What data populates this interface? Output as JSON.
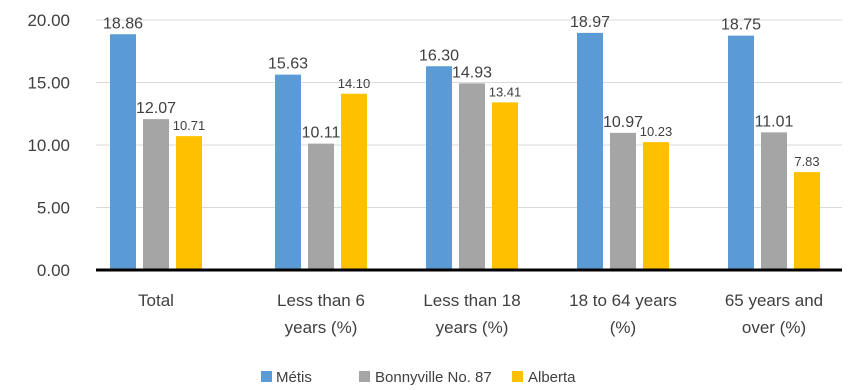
{
  "chart_data": {
    "type": "bar",
    "categories": [
      [
        "Total"
      ],
      [
        "Less than 6",
        "years (%)"
      ],
      [
        "Less than 18",
        "years (%)"
      ],
      [
        "18 to 64 years",
        "(%)"
      ],
      [
        "65 years and",
        "over (%)"
      ]
    ],
    "series": [
      {
        "name": "Métis",
        "color": "#5B9BD5",
        "values": [
          18.86,
          15.63,
          16.3,
          18.97,
          18.75
        ]
      },
      {
        "name": "Bonnyville No. 87",
        "color": "#A5A5A5",
        "values": [
          12.07,
          10.11,
          14.93,
          10.97,
          11.01
        ]
      },
      {
        "name": "Alberta",
        "color": "#FFC000",
        "values": [
          10.71,
          14.1,
          13.41,
          10.23,
          7.83
        ]
      }
    ],
    "value_labels": [
      [
        "18.86",
        "15.63",
        "16.30",
        "18.97",
        "18.75"
      ],
      [
        "12.07",
        "10.11",
        "14.93",
        "10.97",
        "11.01"
      ],
      [
        "10.71",
        "14.10",
        "13.41",
        "10.23",
        "7.83"
      ]
    ],
    "ylim": [
      0,
      20
    ],
    "yticks": [
      "0.00",
      "5.00",
      "10.00",
      "15.00",
      "20.00"
    ],
    "ytick_values": [
      0,
      5,
      10,
      15,
      20
    ],
    "grid": true,
    "legend_position": "bottom",
    "title": "",
    "xlabel": "",
    "ylabel": ""
  }
}
